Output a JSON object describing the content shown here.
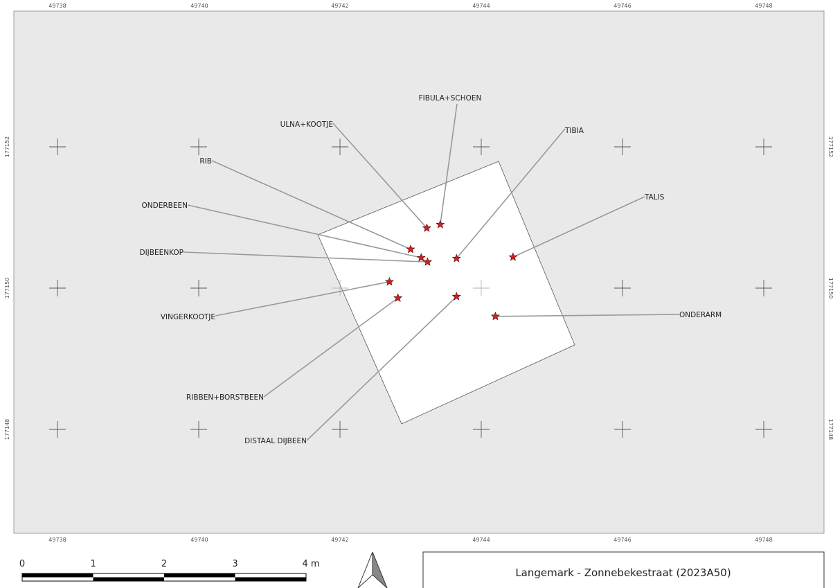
{
  "map": {
    "x_ticks_top": [
      "49738",
      "49740",
      "49742",
      "49744",
      "49746",
      "49748"
    ],
    "x_ticks_bottom": [
      "49738",
      "49740",
      "49742",
      "49744",
      "49746",
      "49748"
    ],
    "y_ticks_left": [
      "177152",
      "177150",
      "177148"
    ],
    "y_ticks_right": [
      "177152",
      "177150",
      "177148"
    ],
    "colors": {
      "map_background": "#e9e9e9",
      "trench_fill": "#ffffff",
      "marker": "#cc2222",
      "leader_line": "#999999"
    },
    "finds": [
      {
        "label": "FIBULA+SCHOEN",
        "x": 49743.42,
        "y": 177150.9
      },
      {
        "label": "ULNA+KOOTJE",
        "x": 49743.23,
        "y": 177150.85
      },
      {
        "label": "TIBIA",
        "x": 49743.65,
        "y": 177150.42
      },
      {
        "label": "RIB",
        "x": 49743.0,
        "y": 177150.55
      },
      {
        "label": "TALIS",
        "x": 49744.45,
        "y": 177150.44
      },
      {
        "label": "ONDERBEEN",
        "x": 49743.15,
        "y": 177150.43
      },
      {
        "label": "DIJBEENKOP",
        "x": 49743.24,
        "y": 177150.37
      },
      {
        "label": "VINGERKOOTJE",
        "x": 49742.7,
        "y": 177150.09
      },
      {
        "label": "ONDERARM",
        "x": 49744.2,
        "y": 177149.6
      },
      {
        "label": "RIBBEN+BORSTBEEN",
        "x": 49742.82,
        "y": 177149.86
      },
      {
        "label": "DISTAAL DIJBEEN",
        "x": 49743.65,
        "y": 177149.88
      }
    ]
  },
  "scalebar": {
    "labels": [
      "0",
      "1",
      "2",
      "3",
      "4 m"
    ]
  },
  "north_arrow": {
    "icon": "north-arrow-icon"
  },
  "title_box": {
    "title": "Langemark - Zonnebekestraat (2023A50)"
  }
}
